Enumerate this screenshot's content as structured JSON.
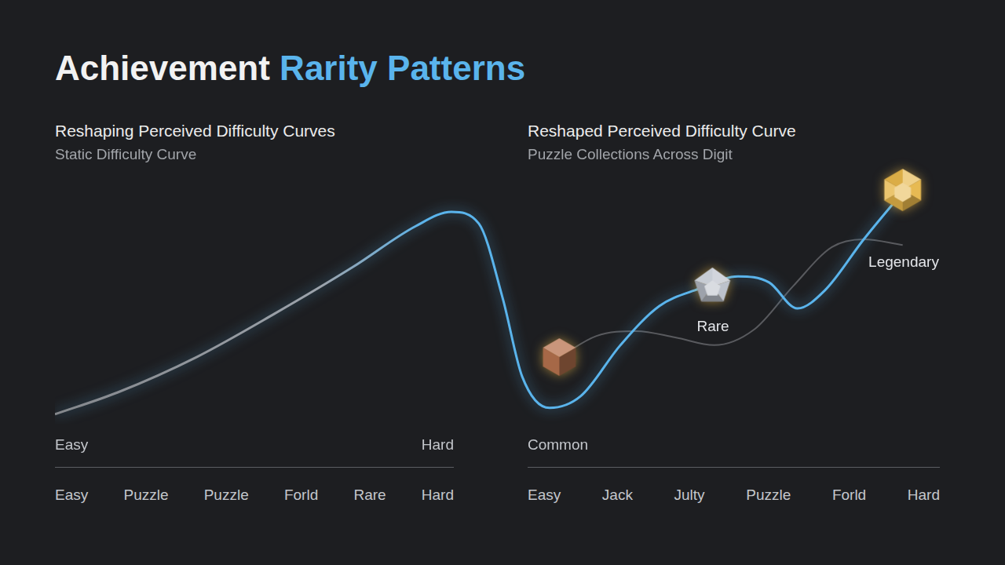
{
  "header": {
    "title": "Achievement",
    "title_highlight": "Rarity Patterns"
  },
  "panels": [
    {
      "title": "Reshaping Perceived Difficulty Curves",
      "subtitle": "Static Difficulty Curve",
      "axis_start": "Easy",
      "axis_end": "Hard",
      "categories": [
        "Easy",
        "Puzzle",
        "Puzzle",
        "Forld",
        "Rare",
        "Hard"
      ]
    },
    {
      "title": "Reshaped Perceived Difficulty Curve",
      "subtitle": "Puzzle Collections Across Digit",
      "categories": [
        "Easy",
        "Jack",
        "Julty",
        "Puzzle",
        "Forld",
        "Hard"
      ]
    }
  ],
  "chart_data": {
    "type": "line",
    "xlim": [
      0,
      100
    ],
    "ylim": [
      0,
      100
    ],
    "grid": false,
    "tick_labels": false,
    "series": [
      {
        "color": "#5ab4ec",
        "line_style": "solid",
        "x": [
          0,
          7.1,
          16.0,
          24.8,
          33.7,
          40.8,
          44.8,
          47.9,
          50.6,
          52.8,
          55.9,
          59.4,
          63.9,
          68.3,
          72.8,
          77.2,
          80.7,
          83.9,
          87.0,
          91.4,
          95.8
        ],
        "values": [
          3.9,
          12.9,
          27.4,
          45.2,
          64.5,
          81.3,
          87.1,
          82.3,
          51.6,
          19.4,
          6.5,
          11.3,
          32.3,
          48.4,
          55.5,
          60.6,
          58.1,
          47.4,
          54.8,
          75.8,
          95.2
        ]
      },
      {
        "color": "#8a8d92",
        "line_style": "solid",
        "x": [
          57.0,
          61.2,
          65.7,
          70.1,
          74.5,
          79.0,
          83.4,
          87.8,
          91.4,
          95.8
        ],
        "values": [
          27.4,
          36.1,
          38.1,
          35.5,
          32.3,
          38.7,
          56.5,
          72.6,
          75.8,
          73.5
        ]
      },
      {
        "type": "scatter",
        "marker": "gem",
        "colors": [
          "#b8734f",
          "#b9bfc9",
          "#e6b64a"
        ],
        "labels": [
          "Common",
          "Rare",
          "Legendary"
        ],
        "x": [
          57.0,
          74.3,
          95.8
        ],
        "values": [
          27.4,
          56.5,
          96.1
        ]
      }
    ]
  }
}
